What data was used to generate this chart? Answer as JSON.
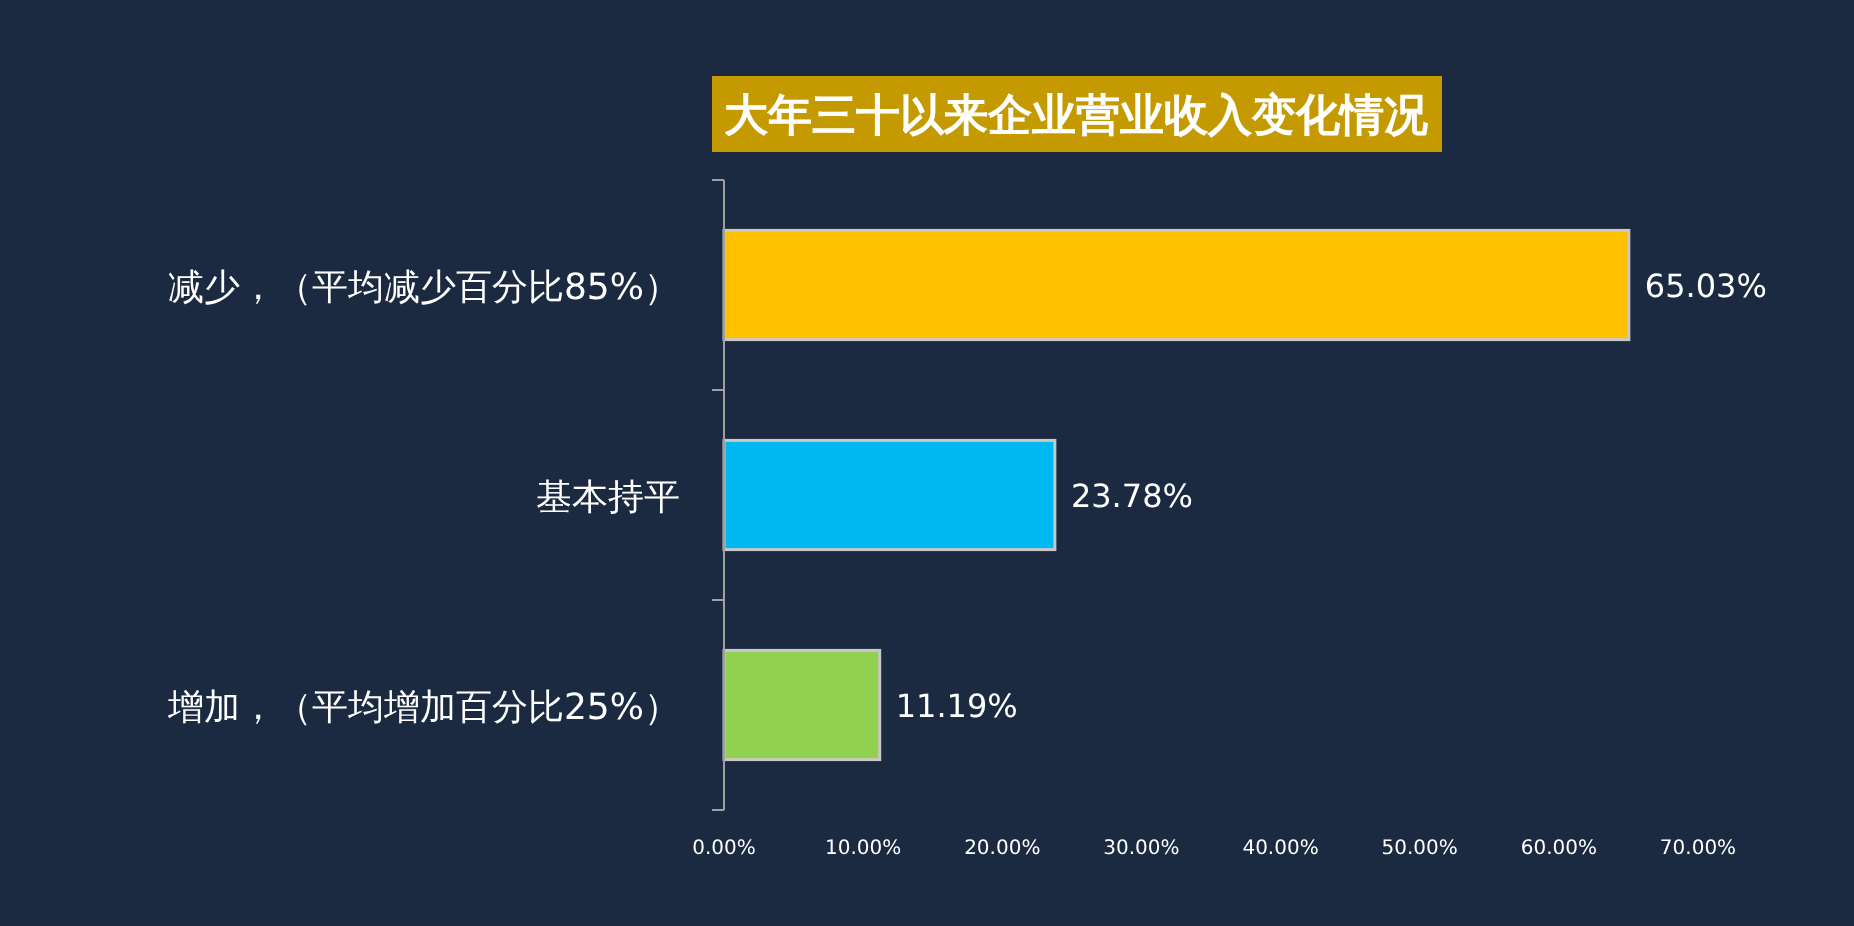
{
  "chart_data": {
    "type": "bar",
    "orientation": "horizontal",
    "title": "大年三十以来企业营业收入变化情况",
    "categories": [
      "减少，（平均减少百分比85%）",
      "基本持平",
      "增加，（平均增加百分比25%）"
    ],
    "values": [
      65.03,
      23.78,
      11.19
    ],
    "colors": [
      "#ffc000",
      "#00b8f0",
      "#92d050"
    ],
    "value_labels": [
      "65.03%",
      "23.78%",
      "11.19%"
    ],
    "xlim": [
      0,
      70
    ],
    "xticks": [
      {
        "value": 0,
        "label": "0.00%"
      },
      {
        "value": 10,
        "label": "10.00%"
      },
      {
        "value": 20,
        "label": "20.00%"
      },
      {
        "value": 30,
        "label": "30.00%"
      },
      {
        "value": 40,
        "label": "40.00%"
      },
      {
        "value": 50,
        "label": "50.00%"
      },
      {
        "value": 60,
        "label": "60.00%"
      },
      {
        "value": 70,
        "label": "70.00%"
      }
    ]
  }
}
